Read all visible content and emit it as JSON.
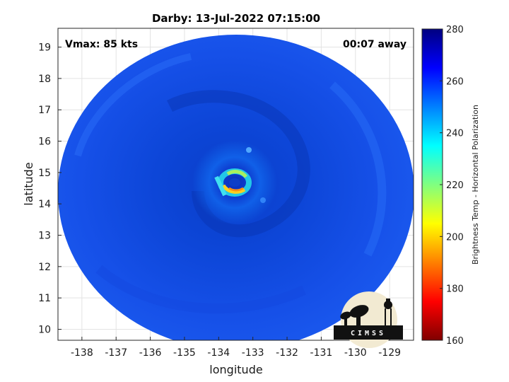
{
  "title": "Darby: 13-Jul-2022 07:15:00",
  "vmax_label": "Vmax: 85 kts",
  "away_label": "00:07 away",
  "map": {
    "xlabel": "longitude",
    "ylabel": "latitude",
    "xlim": [
      -138.7,
      -128.3
    ],
    "ylim": [
      9.65,
      19.6
    ],
    "xticks": [
      -138,
      -137,
      -136,
      -135,
      -134,
      -133,
      -132,
      -131,
      -130,
      -129
    ],
    "yticks": [
      10,
      11,
      12,
      13,
      14,
      15,
      16,
      17,
      18,
      19
    ],
    "grid": true,
    "swath_center": [
      -133.4,
      14.4
    ],
    "storm_center": [
      -133.8,
      14.5
    ]
  },
  "colorbar": {
    "label": "Brightness Temp - Horizontal Polarization",
    "min": 160,
    "max": 280,
    "ticks": [
      160,
      180,
      200,
      220,
      240,
      260,
      280
    ],
    "colors": [
      "#800000",
      "#ff0000",
      "#ff8000",
      "#ffff00",
      "#80ff80",
      "#00ffff",
      "#0080ff",
      "#0000ff",
      "#000080"
    ]
  },
  "logo": {
    "text": "CIMSS"
  }
}
